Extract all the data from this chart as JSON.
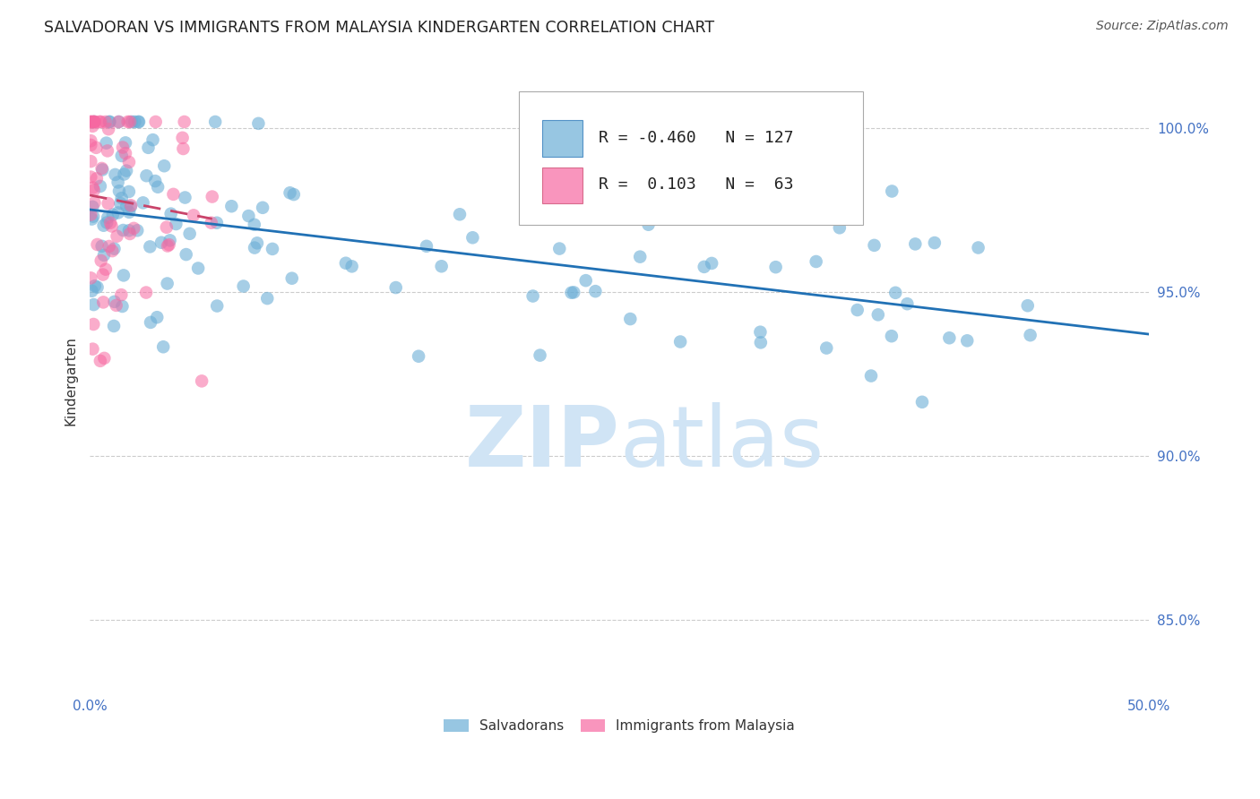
{
  "title": "SALVADORAN VS IMMIGRANTS FROM MALAYSIA KINDERGARTEN CORRELATION CHART",
  "source": "Source: ZipAtlas.com",
  "ylabel": "Kindergarten",
  "ytick_labels": [
    "100.0%",
    "95.0%",
    "90.0%",
    "85.0%"
  ],
  "ytick_values": [
    1.0,
    0.95,
    0.9,
    0.85
  ],
  "xlim": [
    0.0,
    0.5
  ],
  "ylim": [
    0.828,
    1.018
  ],
  "legend_blue_R": "-0.460",
  "legend_blue_N": "127",
  "legend_pink_R": "0.103",
  "legend_pink_N": "63",
  "blue_color": "#6baed6",
  "pink_color": "#f768a1",
  "blue_line_color": "#2171b5",
  "pink_line_color": "#c9446a",
  "watermark_color": "#d0e4f5",
  "background_color": "#ffffff",
  "grid_color": "#cccccc",
  "title_fontsize": 12.5,
  "source_fontsize": 10,
  "axis_label_color": "#4472c4",
  "tick_label_color": "#4472c4"
}
